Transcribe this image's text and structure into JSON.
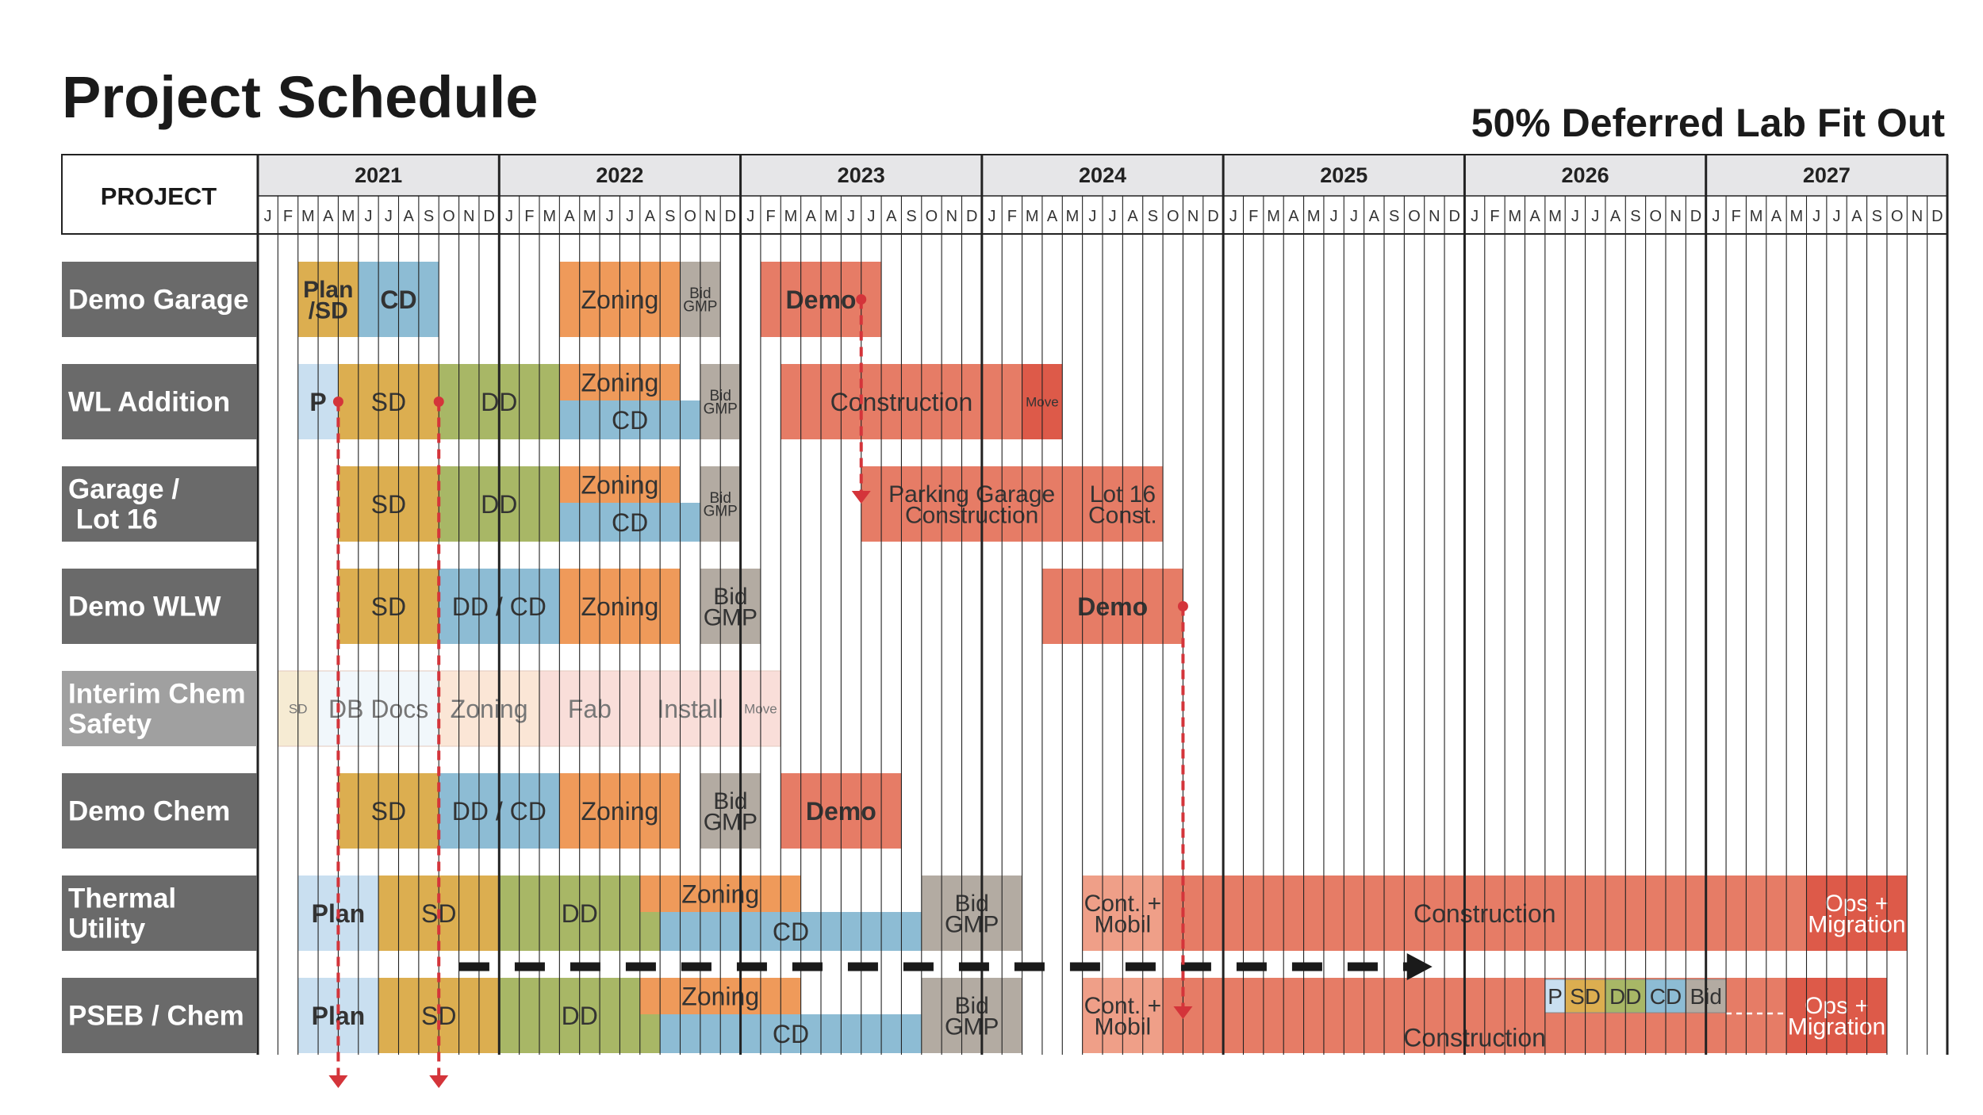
{
  "header": {
    "title": "Project Schedule",
    "subtitle": "50% Deferred Lab Fit Out",
    "project_col_label": "PROJECT"
  },
  "colors": {
    "plan": "#c9dff0",
    "sd": "#dcae50",
    "dd": "#a8b766",
    "cd": "#8dbcd4",
    "zoning": "#ef9a5a",
    "bid": "#b3aba2",
    "construction": "#e67c66",
    "move": "#dd5a49",
    "cont": "#ef9f88",
    "row_label_bg": "#6a6a6a",
    "row_label_light_bg": "#a0a0a0",
    "grid": "#222222",
    "dependency": "#d4343a"
  },
  "chart_data": {
    "type": "gantt",
    "title": "Project Schedule",
    "subtitle": "50% Deferred Lab Fit Out",
    "time_unit": "month index (0 = Jan 2021)",
    "years": [
      "2021",
      "2022",
      "2023",
      "2024",
      "2025",
      "2026",
      "2027"
    ],
    "month_labels": [
      "J",
      "F",
      "M",
      "A",
      "M",
      "J",
      "J",
      "A",
      "S",
      "O",
      "N",
      "D"
    ],
    "rows": [
      {
        "name": "Demo Garage",
        "bars": [
          {
            "label": "Plan\n/SD",
            "start": 2,
            "end": 5,
            "color": "sd",
            "bold": true
          },
          {
            "label": "CD",
            "start": 5,
            "end": 9,
            "color": "cd",
            "bold": true
          },
          {
            "label": "Zoning",
            "start": 15,
            "end": 21,
            "color": "zoning"
          },
          {
            "label": "Bid\nGMP",
            "start": 21,
            "end": 23,
            "color": "bid",
            "small": true
          },
          {
            "label": "Demo",
            "start": 25,
            "end": 31,
            "color": "construction",
            "bold": true
          }
        ]
      },
      {
        "name": "WL Addition",
        "bars": [
          {
            "label": "P",
            "start": 2,
            "end": 4,
            "color": "plan",
            "bold": true
          },
          {
            "label": "SD",
            "start": 4,
            "end": 9,
            "color": "sd"
          },
          {
            "label": "DD",
            "start": 9,
            "end": 15,
            "color": "dd"
          },
          {
            "label": "Zoning",
            "start": 15,
            "end": 21,
            "color": "zoning",
            "half": "top"
          },
          {
            "label": "CD",
            "start": 15,
            "end": 22,
            "color": "cd",
            "half": "bottom"
          },
          {
            "label": "Bid\nGMP",
            "start": 22,
            "end": 24,
            "color": "bid",
            "small": true
          },
          {
            "label": "Construction",
            "start": 26,
            "end": 38,
            "color": "construction"
          },
          {
            "label": "Move",
            "start": 38,
            "end": 40,
            "color": "move",
            "small": true
          }
        ]
      },
      {
        "name": "Garage /\n Lot 16",
        "bars": [
          {
            "label": "SD",
            "start": 4,
            "end": 9,
            "color": "sd"
          },
          {
            "label": "DD",
            "start": 9,
            "end": 15,
            "color": "dd"
          },
          {
            "label": "Zoning",
            "start": 15,
            "end": 21,
            "color": "zoning",
            "half": "top"
          },
          {
            "label": "CD",
            "start": 15,
            "end": 22,
            "color": "cd",
            "half": "bottom"
          },
          {
            "label": "Bid\nGMP",
            "start": 22,
            "end": 24,
            "color": "bid",
            "small": true
          },
          {
            "label": "Parking Garage\nConstruction",
            "start": 30,
            "end": 41,
            "color": "construction"
          },
          {
            "label": "Lot 16\nConst.",
            "start": 41,
            "end": 45,
            "color": "construction"
          }
        ]
      },
      {
        "name": "Demo WLW",
        "bars": [
          {
            "label": "SD",
            "start": 4,
            "end": 9,
            "color": "sd"
          },
          {
            "label": "DD / CD",
            "start": 9,
            "end": 15,
            "color": "cd"
          },
          {
            "label": "Zoning",
            "start": 15,
            "end": 21,
            "color": "zoning"
          },
          {
            "label": "Bid\nGMP",
            "start": 22,
            "end": 25,
            "color": "bid"
          },
          {
            "label": "Demo",
            "start": 39,
            "end": 46,
            "color": "construction",
            "bold": true
          }
        ]
      },
      {
        "name": "Interim Chem\nSafety",
        "light": true,
        "bars": [
          {
            "label": "SD",
            "start": 1,
            "end": 3,
            "color": "sd",
            "faded": true,
            "small": true
          },
          {
            "label": "DB Docs",
            "start": 3,
            "end": 9,
            "color": "plan",
            "faded": true
          },
          {
            "label": "Zoning",
            "start": 9,
            "end": 14,
            "color": "zoning",
            "faded": true
          },
          {
            "label": "Fab",
            "start": 14,
            "end": 19,
            "color": "construction",
            "faded": true
          },
          {
            "label": "Install",
            "start": 19,
            "end": 24,
            "color": "construction",
            "faded": true
          },
          {
            "label": "Move",
            "start": 24,
            "end": 26,
            "color": "construction",
            "faded": true,
            "small": true
          }
        ]
      },
      {
        "name": "Demo Chem",
        "bars": [
          {
            "label": "SD",
            "start": 4,
            "end": 9,
            "color": "sd"
          },
          {
            "label": "DD / CD",
            "start": 9,
            "end": 15,
            "color": "cd"
          },
          {
            "label": "Zoning",
            "start": 15,
            "end": 21,
            "color": "zoning"
          },
          {
            "label": "Bid\nGMP",
            "start": 22,
            "end": 25,
            "color": "bid"
          },
          {
            "label": "Demo",
            "start": 26,
            "end": 32,
            "color": "construction",
            "bold": true
          }
        ]
      },
      {
        "name": "Thermal\nUtility",
        "bars": [
          {
            "label": "Plan",
            "start": 2,
            "end": 6,
            "color": "plan",
            "bold": true
          },
          {
            "label": "SD",
            "start": 6,
            "end": 12,
            "color": "sd"
          },
          {
            "label": "DD",
            "start": 12,
            "end": 20,
            "color": "dd"
          },
          {
            "label": "Zoning",
            "start": 19,
            "end": 27,
            "color": "zoning",
            "half": "top"
          },
          {
            "label": "CD",
            "start": 20,
            "end": 33,
            "color": "cd",
            "half": "bottom"
          },
          {
            "label": "Bid\nGMP",
            "start": 33,
            "end": 38,
            "color": "bid"
          },
          {
            "label": "Cont. +\nMobil",
            "start": 41,
            "end": 45,
            "color": "cont"
          },
          {
            "label": "Construction",
            "start": 45,
            "end": 77,
            "color": "construction"
          },
          {
            "label": "Ops +\nMigration",
            "start": 77,
            "end": 82,
            "color": "move",
            "white": true
          }
        ]
      },
      {
        "name": "PSEB / Chem",
        "bars": [
          {
            "label": "Plan",
            "start": 2,
            "end": 6,
            "color": "plan",
            "bold": true
          },
          {
            "label": "SD",
            "start": 6,
            "end": 12,
            "color": "sd"
          },
          {
            "label": "DD",
            "start": 12,
            "end": 20,
            "color": "dd"
          },
          {
            "label": "Zoning",
            "start": 19,
            "end": 27,
            "color": "zoning",
            "half": "top"
          },
          {
            "label": "CD",
            "start": 20,
            "end": 33,
            "color": "cd",
            "half": "bottom"
          },
          {
            "label": "Bid\nGMP",
            "start": 33,
            "end": 38,
            "color": "bid"
          },
          {
            "label": "Cont. +\nMobil",
            "start": 41,
            "end": 45,
            "color": "cont"
          },
          {
            "label": "Construction",
            "start": 45,
            "end": 76,
            "color": "construction",
            "valign": "bottom"
          },
          {
            "label": "Ops +\nMigration",
            "start": 76,
            "end": 81,
            "color": "move",
            "white": true
          }
        ],
        "inset": [
          {
            "label": "P",
            "start": 64,
            "end": 65,
            "color": "plan"
          },
          {
            "label": "SD",
            "start": 65,
            "end": 67,
            "color": "sd"
          },
          {
            "label": "DD",
            "start": 67,
            "end": 69,
            "color": "dd"
          },
          {
            "label": "CD",
            "start": 69,
            "end": 71,
            "color": "cd"
          },
          {
            "label": "Bid",
            "start": 71,
            "end": 73,
            "color": "bid"
          }
        ]
      }
    ],
    "dependencies": [
      {
        "from_row": 1,
        "to_row": 7,
        "month": 4
      },
      {
        "from_row": 1,
        "to_row": 7,
        "month": 9
      },
      {
        "from_row": 0,
        "to_row": 2,
        "month": 30
      },
      {
        "from_row": 3,
        "to_row": 7,
        "month": 46
      }
    ],
    "timeline_arrow": {
      "row_gap_after": 6,
      "start": 11,
      "end": 58
    }
  }
}
